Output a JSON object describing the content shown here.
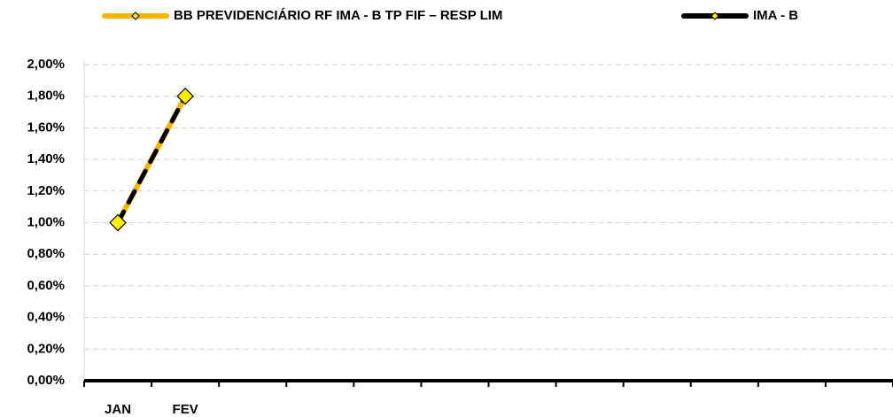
{
  "chart_data": {
    "type": "line",
    "categories": [
      "JAN",
      "FEV",
      null,
      null,
      null,
      null,
      null,
      null,
      null,
      null,
      null,
      null
    ],
    "series": [
      {
        "name": "BB PREVIDENCIÁRIO RF IMA - B TP FIF – RESP LIM",
        "color": "#f7b500",
        "values": [
          1.0,
          1.8,
          null,
          null,
          null,
          null,
          null,
          null,
          null,
          null,
          null,
          null
        ]
      },
      {
        "name": "IMA - B",
        "color": "#000000",
        "values": [
          1.0,
          1.8,
          null,
          null,
          null,
          null,
          null,
          null,
          null,
          null,
          null,
          null
        ]
      }
    ],
    "ylim": [
      0,
      2
    ],
    "yticks": [
      {
        "value": 0,
        "label": "0,00%"
      },
      {
        "value": 0.2,
        "label": "0,20%"
      },
      {
        "value": 0.4,
        "label": "0,40%"
      },
      {
        "value": 0.6,
        "label": "0,60%"
      },
      {
        "value": 0.8,
        "label": "0,80%"
      },
      {
        "value": 1.0,
        "label": "1,00%"
      },
      {
        "value": 1.2,
        "label": "1,20%"
      },
      {
        "value": 1.4,
        "label": "1,40%"
      },
      {
        "value": 1.6,
        "label": "1,60%"
      },
      {
        "value": 1.8,
        "label": "1,80%"
      },
      {
        "value": 2.0,
        "label": "2,00%"
      }
    ],
    "grid": true,
    "legend": "top"
  }
}
